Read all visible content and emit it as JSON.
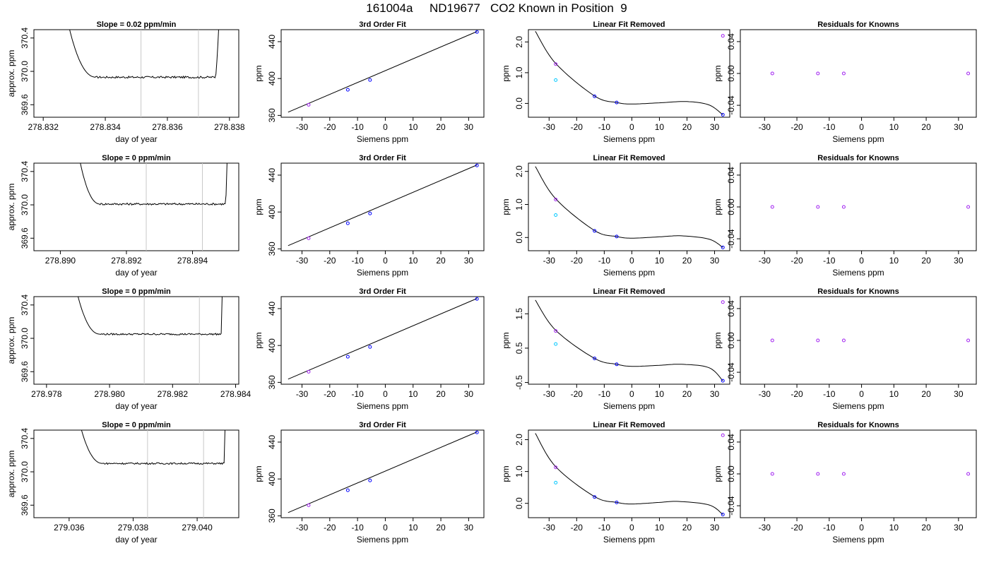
{
  "figure_title": "161004a     ND19677   CO2 Known in Position  9",
  "colors": {
    "curve": "#000000",
    "window_line": "#c8c8c8",
    "point_blue": "#0000ff",
    "point_violet": "#a020f0",
    "point_cyan": "#00c8ff",
    "point_magenta": "#ff00ff"
  },
  "rows": [
    {
      "timeseries": {
        "title": "Slope =  0.02  ppm/min",
        "xlabel": "day of year",
        "ylabel": "approx. ppm",
        "xlim": [
          278.8317,
          278.8383
        ],
        "ylim": [
          369.45,
          370.5
        ],
        "xticks": [
          "278.832",
          "278.834",
          "278.836",
          "278.838"
        ],
        "yticks": [
          "369.6",
          "370.0",
          "370.4"
        ],
        "window": [
          278.83515,
          278.837
        ],
        "trace": {
          "start": 278.8325,
          "end": 278.83775,
          "flat_start": 278.8337,
          "flat_end": 278.83755,
          "level": 369.93,
          "noise": 0.012
        }
      },
      "fit": {
        "title": "3rd Order Fit",
        "xlabel": "Siemens ppm",
        "ylabel": "ppm",
        "xlim": [
          -37.5,
          35.5
        ],
        "ylim": [
          358,
          453
        ],
        "xticks": [
          "-30",
          "-20",
          "-10",
          "0",
          "10",
          "20",
          "30"
        ],
        "yticks": [
          "360",
          "400",
          "440"
        ],
        "line": [
          [
            -35,
            363.5
          ],
          [
            33,
            451.0
          ]
        ],
        "points": [
          {
            "x": -27.6,
            "y": 371.5,
            "color": "point_violet"
          },
          {
            "x": -13.5,
            "y": 387.8,
            "color": "point_blue"
          },
          {
            "x": -5.5,
            "y": 398.4,
            "color": "point_blue"
          },
          {
            "x": 33.0,
            "y": 450.5,
            "color": "point_blue"
          }
        ]
      },
      "linear_removed": {
        "title": "Linear Fit Removed",
        "xlabel": "Siemens ppm",
        "ylabel": "ppm",
        "xlim": [
          -37.5,
          35.5
        ],
        "ylim": [
          -0.45,
          2.4
        ],
        "xticks": [
          "-30",
          "-20",
          "-10",
          "0",
          "10",
          "20",
          "30"
        ],
        "yticks": [
          "0.0",
          "1.0",
          "2.0"
        ],
        "curve": [
          [
            -35,
            2.35
          ],
          [
            -27.6,
            1.3
          ],
          [
            -13.5,
            0.24
          ],
          [
            -5.5,
            0.03
          ],
          [
            0,
            -0.02
          ],
          [
            10,
            0.02
          ],
          [
            20,
            0.06
          ],
          [
            28,
            -0.05
          ],
          [
            33,
            -0.37
          ]
        ],
        "points": [
          {
            "x": -27.6,
            "y": 1.28,
            "color": "point_violet"
          },
          {
            "x": -27.6,
            "y": 0.76,
            "color": "point_cyan"
          },
          {
            "x": -13.5,
            "y": 0.23,
            "color": "point_blue"
          },
          {
            "x": -5.5,
            "y": 0.03,
            "color": "point_blue"
          },
          {
            "x": 33.0,
            "y": 2.2,
            "color": "point_violet"
          },
          {
            "x": 33.0,
            "y": -0.37,
            "color": "point_blue"
          }
        ]
      },
      "residuals": {
        "title": "Residuals for Knowns",
        "xlabel": "Siemens ppm",
        "ylabel": "ppm",
        "xlim": [
          -37.5,
          35.5
        ],
        "ylim": [
          -0.055,
          0.055
        ],
        "xticks": [
          "-30",
          "-20",
          "-10",
          "0",
          "10",
          "20",
          "30"
        ],
        "yticks": [
          "-0.04",
          "0.00",
          "0.04"
        ],
        "points": [
          {
            "x": -27.6,
            "y": 0.0,
            "color": "point_violet"
          },
          {
            "x": -13.5,
            "y": 0.0,
            "color": "point_violet"
          },
          {
            "x": -5.5,
            "y": 0.0,
            "color": "point_violet"
          },
          {
            "x": 33.0,
            "y": 0.0,
            "color": "point_violet"
          }
        ]
      }
    },
    {
      "timeseries": {
        "title": "Slope =  0  ppm/min",
        "xlabel": "day of year",
        "ylabel": "approx. ppm",
        "xlim": [
          278.8892,
          278.8954
        ],
        "ylim": [
          369.45,
          370.5
        ],
        "xticks": [
          "278.890",
          "278.892",
          "278.894"
        ],
        "yticks": [
          "369.6",
          "370.0",
          "370.4"
        ],
        "window": [
          278.8926,
          278.8943
        ],
        "trace": {
          "start": 278.8903,
          "end": 278.8951,
          "flat_start": 278.8912,
          "flat_end": 278.895,
          "level": 370.01,
          "noise": 0.012
        }
      },
      "fit": {
        "title": "3rd Order Fit",
        "xlabel": "Siemens ppm",
        "ylabel": "ppm",
        "xlim": [
          -37.5,
          35.5
        ],
        "ylim": [
          358,
          453
        ],
        "xticks": [
          "-30",
          "-20",
          "-10",
          "0",
          "10",
          "20",
          "30"
        ],
        "yticks": [
          "360",
          "400",
          "440"
        ],
        "line": [
          [
            -35,
            363.5
          ],
          [
            33,
            451.0
          ]
        ],
        "points": [
          {
            "x": -27.6,
            "y": 371.5,
            "color": "point_violet"
          },
          {
            "x": -13.5,
            "y": 387.8,
            "color": "point_blue"
          },
          {
            "x": -5.5,
            "y": 398.4,
            "color": "point_blue"
          },
          {
            "x": 33.0,
            "y": 450.5,
            "color": "point_blue"
          }
        ]
      },
      "linear_removed": {
        "title": "Linear Fit Removed",
        "xlabel": "Siemens ppm",
        "ylabel": "ppm",
        "xlim": [
          -37.5,
          35.5
        ],
        "ylim": [
          -0.4,
          2.25
        ],
        "xticks": [
          "-30",
          "-20",
          "-10",
          "0",
          "10",
          "20",
          "30"
        ],
        "yticks": [
          "0.0",
          "1.0",
          "2.0"
        ],
        "curve": [
          [
            -35,
            2.15
          ],
          [
            -27.6,
            1.17
          ],
          [
            -13.5,
            0.21
          ],
          [
            -5.5,
            0.03
          ],
          [
            0,
            -0.02
          ],
          [
            10,
            0.02
          ],
          [
            18,
            0.05
          ],
          [
            28,
            -0.05
          ],
          [
            33,
            -0.3
          ]
        ],
        "points": [
          {
            "x": -27.6,
            "y": 1.15,
            "color": "point_violet"
          },
          {
            "x": -27.6,
            "y": 0.68,
            "color": "point_cyan"
          },
          {
            "x": -13.5,
            "y": 0.2,
            "color": "point_blue"
          },
          {
            "x": -5.5,
            "y": 0.03,
            "color": "point_blue"
          },
          {
            "x": 33.0,
            "y": -0.3,
            "color": "point_blue"
          }
        ]
      },
      "residuals": {
        "title": "Residuals for Knowns",
        "xlabel": "Siemens ppm",
        "ylabel": "ppm",
        "xlim": [
          -37.5,
          35.5
        ],
        "ylim": [
          -0.055,
          0.055
        ],
        "xticks": [
          "-30",
          "-20",
          "-10",
          "0",
          "10",
          "20",
          "30"
        ],
        "yticks": [
          "-0.04",
          "0.00",
          "0.04"
        ],
        "points": [
          {
            "x": -27.6,
            "y": 0.0,
            "color": "point_violet"
          },
          {
            "x": -13.5,
            "y": 0.0,
            "color": "point_violet"
          },
          {
            "x": -5.5,
            "y": 0.0,
            "color": "point_violet"
          },
          {
            "x": 33.0,
            "y": 0.0,
            "color": "point_violet"
          }
        ]
      }
    },
    {
      "timeseries": {
        "title": "Slope =  0  ppm/min",
        "xlabel": "day of year",
        "ylabel": "approx. ppm",
        "xlim": [
          278.9776,
          278.9841
        ],
        "ylim": [
          369.45,
          370.5
        ],
        "xticks": [
          "278.978",
          "278.980",
          "278.982",
          "278.984"
        ],
        "yticks": [
          "369.6",
          "370.0",
          "370.4"
        ],
        "window": [
          278.9811,
          278.98285
        ],
        "trace": {
          "start": 278.9786,
          "end": 278.9836,
          "flat_start": 278.9797,
          "flat_end": 278.98355,
          "level": 370.05,
          "noise": 0.01
        }
      },
      "fit": {
        "title": "3rd Order Fit",
        "xlabel": "Siemens ppm",
        "ylabel": "ppm",
        "xlim": [
          -37.5,
          35.5
        ],
        "ylim": [
          358,
          453
        ],
        "xticks": [
          "-30",
          "-20",
          "-10",
          "0",
          "10",
          "20",
          "30"
        ],
        "yticks": [
          "360",
          "400",
          "440"
        ],
        "line": [
          [
            -35,
            363.5
          ],
          [
            33,
            451.0
          ]
        ],
        "points": [
          {
            "x": -27.6,
            "y": 371.5,
            "color": "point_violet"
          },
          {
            "x": -13.5,
            "y": 387.8,
            "color": "point_blue"
          },
          {
            "x": -5.5,
            "y": 398.4,
            "color": "point_blue"
          },
          {
            "x": 33.0,
            "y": 450.5,
            "color": "point_blue"
          }
        ]
      },
      "linear_removed": {
        "title": "Linear Fit Removed",
        "xlabel": "Siemens ppm",
        "ylabel": "ppm",
        "xlim": [
          -37.5,
          35.5
        ],
        "ylim": [
          -0.55,
          2.0
        ],
        "xticks": [
          "-30",
          "-20",
          "-10",
          "0",
          "10",
          "20",
          "30"
        ],
        "yticks": [
          "-0.5",
          "0.5",
          "1.5"
        ],
        "curve": [
          [
            -35,
            1.9
          ],
          [
            -27.6,
            1.02
          ],
          [
            -13.5,
            0.2
          ],
          [
            -5.5,
            0.03
          ],
          [
            0,
            -0.03
          ],
          [
            10,
            0.0
          ],
          [
            18,
            0.03
          ],
          [
            28,
            -0.07
          ],
          [
            33,
            -0.45
          ]
        ],
        "points": [
          {
            "x": -27.6,
            "y": 1.0,
            "color": "point_violet"
          },
          {
            "x": -27.6,
            "y": 0.62,
            "color": "point_cyan"
          },
          {
            "x": -13.5,
            "y": 0.2,
            "color": "point_blue"
          },
          {
            "x": -5.5,
            "y": 0.03,
            "color": "point_blue"
          },
          {
            "x": 33.0,
            "y": 1.84,
            "color": "point_violet"
          },
          {
            "x": 33.0,
            "y": -0.45,
            "color": "point_blue"
          }
        ]
      },
      "residuals": {
        "title": "Residuals for Knowns",
        "xlabel": "Siemens ppm",
        "ylabel": "ppm",
        "xlim": [
          -37.5,
          35.5
        ],
        "ylim": [
          -0.055,
          0.055
        ],
        "xticks": [
          "-30",
          "-20",
          "-10",
          "0",
          "10",
          "20",
          "30"
        ],
        "yticks": [
          "-0.04",
          "0.00",
          "0.04"
        ],
        "points": [
          {
            "x": -27.6,
            "y": 0.0,
            "color": "point_violet"
          },
          {
            "x": -13.5,
            "y": 0.0,
            "color": "point_violet"
          },
          {
            "x": -5.5,
            "y": 0.0,
            "color": "point_violet"
          },
          {
            "x": 33.0,
            "y": 0.0,
            "color": "point_violet"
          }
        ]
      }
    },
    {
      "timeseries": {
        "title": "Slope =  0  ppm/min",
        "xlabel": "day of year",
        "ylabel": "approx. ppm",
        "xlim": [
          279.0349,
          279.0413
        ],
        "ylim": [
          369.45,
          370.5
        ],
        "xticks": [
          "279.036",
          "279.038",
          "279.040"
        ],
        "yticks": [
          "369.6",
          "370.0",
          "370.4"
        ],
        "window": [
          279.03845,
          279.0402
        ],
        "trace": {
          "start": 279.03595,
          "end": 279.0409,
          "flat_start": 279.03705,
          "flat_end": 279.04085,
          "level": 370.1,
          "noise": 0.01
        }
      },
      "fit": {
        "title": "3rd Order Fit",
        "xlabel": "Siemens ppm",
        "ylabel": "ppm",
        "xlim": [
          -37.5,
          35.5
        ],
        "ylim": [
          358,
          453
        ],
        "xticks": [
          "-30",
          "-20",
          "-10",
          "0",
          "10",
          "20",
          "30"
        ],
        "yticks": [
          "360",
          "400",
          "440"
        ],
        "line": [
          [
            -35,
            363.5
          ],
          [
            33,
            451.0
          ]
        ],
        "points": [
          {
            "x": -27.6,
            "y": 371.5,
            "color": "point_violet"
          },
          {
            "x": -13.5,
            "y": 387.8,
            "color": "point_blue"
          },
          {
            "x": -5.5,
            "y": 398.4,
            "color": "point_blue"
          },
          {
            "x": 33.0,
            "y": 450.5,
            "color": "point_blue"
          }
        ]
      },
      "linear_removed": {
        "title": "Linear Fit Removed",
        "xlabel": "Siemens ppm",
        "ylabel": "ppm",
        "xlim": [
          -37.5,
          35.5
        ],
        "ylim": [
          -0.45,
          2.3
        ],
        "xticks": [
          "-30",
          "-20",
          "-10",
          "0",
          "10",
          "20",
          "30"
        ],
        "yticks": [
          "0.0",
          "1.0",
          "2.0"
        ],
        "curve": [
          [
            -35,
            2.2
          ],
          [
            -27.6,
            1.15
          ],
          [
            -13.5,
            0.21
          ],
          [
            -5.5,
            0.03
          ],
          [
            0,
            -0.02
          ],
          [
            10,
            0.03
          ],
          [
            17,
            0.06
          ],
          [
            28,
            -0.05
          ],
          [
            33,
            -0.35
          ]
        ],
        "points": [
          {
            "x": -27.6,
            "y": 1.13,
            "color": "point_violet"
          },
          {
            "x": -27.6,
            "y": 0.65,
            "color": "point_cyan"
          },
          {
            "x": -13.5,
            "y": 0.2,
            "color": "point_blue"
          },
          {
            "x": -5.5,
            "y": 0.03,
            "color": "point_blue"
          },
          {
            "x": 33.0,
            "y": 2.14,
            "color": "point_violet"
          },
          {
            "x": 33.0,
            "y": -0.35,
            "color": "point_blue"
          }
        ]
      },
      "residuals": {
        "title": "Residuals for Knowns",
        "xlabel": "Siemens ppm",
        "ylabel": "ppm",
        "xlim": [
          -37.5,
          35.5
        ],
        "ylim": [
          -0.055,
          0.055
        ],
        "xticks": [
          "-30",
          "-20",
          "-10",
          "0",
          "10",
          "20",
          "30"
        ],
        "yticks": [
          "-0.04",
          "0.00",
          "0.04"
        ],
        "points": [
          {
            "x": -27.6,
            "y": 0.0,
            "color": "point_violet"
          },
          {
            "x": -13.5,
            "y": 0.0,
            "color": "point_violet"
          },
          {
            "x": -5.5,
            "y": 0.0,
            "color": "point_violet"
          },
          {
            "x": 33.0,
            "y": 0.0,
            "color": "point_violet"
          }
        ]
      }
    }
  ]
}
